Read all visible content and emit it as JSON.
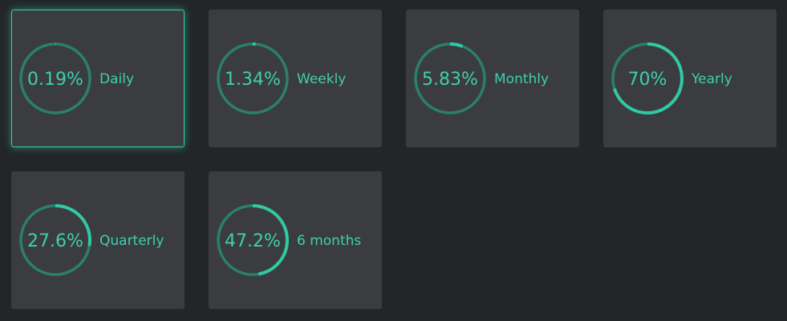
{
  "range": [
    0,
    100
  ],
  "cards": [
    {
      "label": "Daily",
      "value": 0.19,
      "value_label": "0.19%",
      "selected": true
    },
    {
      "label": "Weekly",
      "value": 1.34,
      "value_label": "1.34%"
    },
    {
      "label": "Monthly",
      "value": 5.83,
      "value_label": "5.83%"
    },
    {
      "label": "Yearly",
      "value": 70,
      "value_label": "70%"
    },
    {
      "label": "Quarterly",
      "value": 27.6,
      "value_label": "27.6%"
    },
    {
      "label": "6 months",
      "value": 47.2,
      "value_label": "47.2%"
    }
  ]
}
